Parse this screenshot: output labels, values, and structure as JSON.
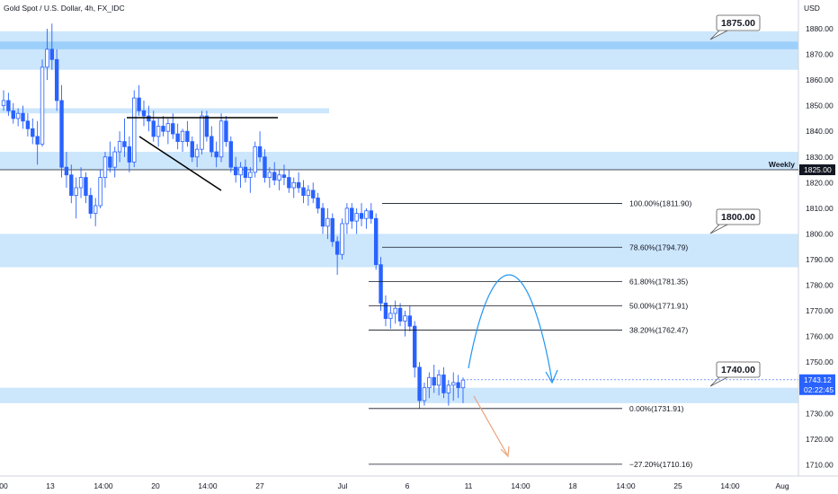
{
  "header": {
    "title": "Gold Spot / U.S. Dollar, 4h, FX_IDC"
  },
  "colors": {
    "candle": "#2962ff",
    "zone": "#bbdefb",
    "zone_strong": "#90caf9",
    "arc": "#2196f3",
    "down_arrow": "#e8a27a",
    "weekly_line": "#131722",
    "price_badge": "#2962ff"
  },
  "chart_data": {
    "type": "candlestick",
    "title": "Gold Spot / U.S. Dollar, 4h, FX_IDC",
    "currency_label": "USD",
    "y_ticks": [
      1880,
      1870,
      1860,
      1850,
      1840,
      1830,
      1820,
      1810,
      1800,
      1790,
      1780,
      1770,
      1760,
      1750,
      1740,
      1730,
      1720,
      1710
    ],
    "y_tick_labels": [
      "1880.00",
      "1870.00",
      "1860.00",
      "1850.00",
      "1840.00",
      "1830.00",
      "1820.00",
      "1810.00",
      "1800.00",
      "1790.00",
      "1780.00",
      "1770.00",
      "1760.00",
      "1750.00",
      "1740.00",
      "1730.00",
      "1720.00",
      "1710.00"
    ],
    "ylim": [
      1706,
      1890
    ],
    "x_tick_labels": [
      "00",
      "13",
      "14:00",
      "20",
      "14:00",
      "27",
      "Jul",
      "6",
      "11",
      "14:00",
      "18",
      "14:00",
      "25",
      "14:00",
      "Aug"
    ],
    "zones": [
      {
        "low": 1864,
        "high": 1879
      },
      {
        "low": 1847,
        "high": 1849
      },
      {
        "low": 1825,
        "high": 1832
      },
      {
        "low": 1787,
        "high": 1800
      },
      {
        "low": 1734,
        "high": 1740
      }
    ],
    "weekly_level": {
      "label": "Weekly",
      "value": 1825.0,
      "value_label": "1825.00"
    },
    "callouts": [
      {
        "text": "1875.00",
        "value": 1875.0
      },
      {
        "text": "1800.00",
        "value": 1800.0
      },
      {
        "text": "1740.00",
        "value": 1740.0
      }
    ],
    "fib_levels": [
      {
        "ratio": "100.00%",
        "price": 1811.9,
        "label": "100.00%(1811.90)"
      },
      {
        "ratio": "78.60%",
        "price": 1794.79,
        "label": "78.60%(1794.79)"
      },
      {
        "ratio": "61.80%",
        "price": 1781.35,
        "label": "61.80%(1781.35)"
      },
      {
        "ratio": "50.00%",
        "price": 1771.91,
        "label": "50.00%(1771.91)"
      },
      {
        "ratio": "38.20%",
        "price": 1762.47,
        "label": "38.20%(1762.47)"
      },
      {
        "ratio": "0.00%",
        "price": 1731.91,
        "label": "0.00%(1731.91)"
      },
      {
        "ratio": "-27.20%",
        "price": 1710.16,
        "label": "−27.20%(1710.16)"
      }
    ],
    "last_price": {
      "value": 1743.12,
      "label": "1743.12",
      "countdown": "02:22:45"
    },
    "candles": [
      [
        1850,
        1856,
        1848,
        1852
      ],
      [
        1852,
        1855,
        1846,
        1848
      ],
      [
        1848,
        1851,
        1843,
        1845
      ],
      [
        1845,
        1849,
        1842,
        1847
      ],
      [
        1847,
        1850,
        1841,
        1844
      ],
      [
        1844,
        1847,
        1838,
        1841
      ],
      [
        1841,
        1845,
        1835,
        1838
      ],
      [
        1838,
        1844,
        1827,
        1835
      ],
      [
        1835,
        1868,
        1834,
        1865
      ],
      [
        1865,
        1880,
        1860,
        1872
      ],
      [
        1872,
        1882,
        1864,
        1868
      ],
      [
        1868,
        1872,
        1848,
        1852
      ],
      [
        1852,
        1858,
        1822,
        1826
      ],
      [
        1826,
        1832,
        1818,
        1823
      ],
      [
        1823,
        1827,
        1812,
        1815
      ],
      [
        1815,
        1822,
        1806,
        1818
      ],
      [
        1818,
        1826,
        1814,
        1822
      ],
      [
        1822,
        1824,
        1812,
        1815
      ],
      [
        1815,
        1818,
        1806,
        1808
      ],
      [
        1808,
        1814,
        1803,
        1811
      ],
      [
        1811,
        1825,
        1810,
        1822
      ],
      [
        1822,
        1832,
        1818,
        1830
      ],
      [
        1830,
        1836,
        1824,
        1826
      ],
      [
        1826,
        1834,
        1822,
        1832
      ],
      [
        1832,
        1840,
        1828,
        1836
      ],
      [
        1836,
        1845,
        1830,
        1834
      ],
      [
        1834,
        1838,
        1824,
        1828
      ],
      [
        1828,
        1856,
        1826,
        1853
      ],
      [
        1853,
        1858,
        1846,
        1848
      ],
      [
        1848,
        1852,
        1842,
        1846
      ],
      [
        1846,
        1850,
        1840,
        1844
      ],
      [
        1844,
        1848,
        1836,
        1838
      ],
      [
        1838,
        1845,
        1834,
        1842
      ],
      [
        1842,
        1846,
        1838,
        1840
      ],
      [
        1840,
        1845,
        1835,
        1843
      ],
      [
        1843,
        1847,
        1837,
        1839
      ],
      [
        1839,
        1843,
        1833,
        1836
      ],
      [
        1836,
        1841,
        1832,
        1840
      ],
      [
        1840,
        1844,
        1834,
        1836
      ],
      [
        1836,
        1838,
        1828,
        1830
      ],
      [
        1830,
        1835,
        1826,
        1833
      ],
      [
        1833,
        1848,
        1831,
        1846
      ],
      [
        1846,
        1848,
        1836,
        1838
      ],
      [
        1838,
        1842,
        1830,
        1832
      ],
      [
        1832,
        1836,
        1826,
        1830
      ],
      [
        1830,
        1847,
        1828,
        1844
      ],
      [
        1844,
        1846,
        1834,
        1836
      ],
      [
        1836,
        1838,
        1824,
        1826
      ],
      [
        1826,
        1830,
        1820,
        1823
      ],
      [
        1823,
        1828,
        1818,
        1826
      ],
      [
        1826,
        1829,
        1820,
        1822
      ],
      [
        1822,
        1826,
        1816,
        1824
      ],
      [
        1824,
        1836,
        1822,
        1834
      ],
      [
        1834,
        1840,
        1828,
        1830
      ],
      [
        1830,
        1833,
        1820,
        1822
      ],
      [
        1822,
        1826,
        1818,
        1824
      ],
      [
        1824,
        1828,
        1819,
        1821
      ],
      [
        1821,
        1825,
        1817,
        1823
      ],
      [
        1823,
        1827,
        1819,
        1822
      ],
      [
        1822,
        1825,
        1816,
        1818
      ],
      [
        1818,
        1822,
        1814,
        1820
      ],
      [
        1820,
        1824,
        1816,
        1818
      ],
      [
        1818,
        1821,
        1812,
        1815
      ],
      [
        1815,
        1819,
        1811,
        1817
      ],
      [
        1817,
        1820,
        1812,
        1814
      ],
      [
        1814,
        1816,
        1808,
        1810
      ],
      [
        1810,
        1812,
        1800,
        1803
      ],
      [
        1803,
        1810,
        1798,
        1806
      ],
      [
        1806,
        1808,
        1795,
        1797
      ],
      [
        1797,
        1799,
        1784,
        1792
      ],
      [
        1792,
        1806,
        1790,
        1804
      ],
      [
        1804,
        1812,
        1800,
        1810
      ],
      [
        1810,
        1812,
        1802,
        1805
      ],
      [
        1805,
        1810,
        1800,
        1808
      ],
      [
        1808,
        1812,
        1803,
        1806
      ],
      [
        1806,
        1810,
        1802,
        1809
      ],
      [
        1809,
        1812,
        1804,
        1806
      ],
      [
        1806,
        1808,
        1786,
        1788
      ],
      [
        1788,
        1791,
        1770,
        1773
      ],
      [
        1773,
        1776,
        1764,
        1767
      ],
      [
        1767,
        1772,
        1763,
        1769
      ],
      [
        1769,
        1774,
        1765,
        1771
      ],
      [
        1771,
        1773,
        1764,
        1766
      ],
      [
        1766,
        1770,
        1760,
        1768
      ],
      [
        1768,
        1772,
        1762,
        1764
      ],
      [
        1764,
        1766,
        1744,
        1748
      ],
      [
        1748,
        1750,
        1732,
        1735
      ],
      [
        1735,
        1742,
        1733,
        1740
      ],
      [
        1740,
        1746,
        1736,
        1744
      ],
      [
        1744,
        1749,
        1738,
        1741
      ],
      [
        1741,
        1747,
        1737,
        1745
      ],
      [
        1745,
        1748,
        1736,
        1738
      ],
      [
        1738,
        1743,
        1733,
        1741
      ],
      [
        1741,
        1746,
        1735,
        1742
      ],
      [
        1742,
        1745,
        1736,
        1740
      ],
      [
        1740,
        1744,
        1734,
        1743
      ]
    ]
  }
}
